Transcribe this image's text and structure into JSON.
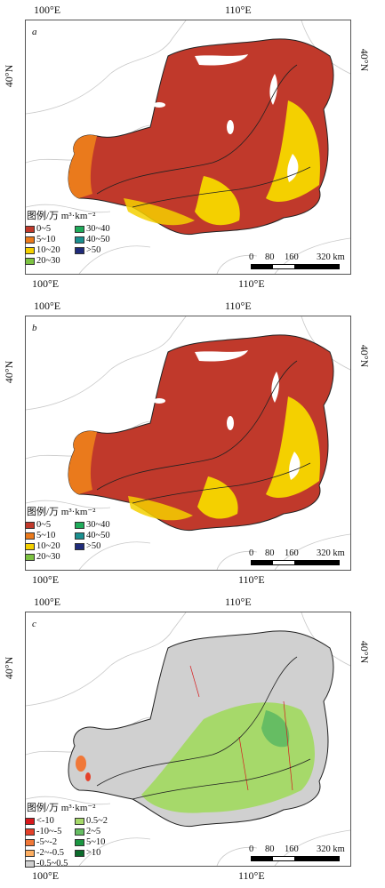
{
  "panels": [
    {
      "letter": "a",
      "lon_labels": [
        "100°E",
        "110°E"
      ],
      "lat_label": "40°N",
      "legend_title": "图例/万 m³·km⁻²",
      "legend": [
        {
          "label": "0~5",
          "color": "#c0392b"
        },
        {
          "label": "30~40",
          "color": "#1eab5a"
        },
        {
          "label": "5~10",
          "color": "#ea7a1c"
        },
        {
          "label": "40~50",
          "color": "#1a8f8f"
        },
        {
          "label": "10~20",
          "color": "#f4d000"
        },
        {
          "label": ">50",
          "color": "#1f2b7a"
        },
        {
          "label": "20~30",
          "color": "#7cc242"
        }
      ],
      "scale": [
        "0",
        "80",
        "160",
        "320 km"
      ]
    },
    {
      "letter": "b",
      "lon_labels": [
        "100°E",
        "110°E"
      ],
      "lat_label": "40°N",
      "legend_title": "图例/万 m³·km⁻²",
      "legend": [
        {
          "label": "0~5",
          "color": "#c0392b"
        },
        {
          "label": "30~40",
          "color": "#1eab5a"
        },
        {
          "label": "5~10",
          "color": "#ea7a1c"
        },
        {
          "label": "40~50",
          "color": "#1a8f8f"
        },
        {
          "label": "10~20",
          "color": "#f4d000"
        },
        {
          "label": ">50",
          "color": "#1f2b7a"
        },
        {
          "label": "20~30",
          "color": "#7cc242"
        }
      ],
      "scale": [
        "0",
        "80",
        "160",
        "320 km"
      ]
    },
    {
      "letter": "c",
      "lon_labels": [
        "100°E",
        "110°E"
      ],
      "lat_label": "40°N",
      "legend_title": "图例/万 m³·km⁻²",
      "legend": [
        {
          "label": "<-10",
          "color": "#d7191c"
        },
        {
          "label": "0.5~2",
          "color": "#a6d96a"
        },
        {
          "label": "-10~-5",
          "color": "#e4412a"
        },
        {
          "label": "2~5",
          "color": "#66bd63"
        },
        {
          "label": "-5~-2",
          "color": "#f07838"
        },
        {
          "label": "5~10",
          "color": "#1a9641"
        },
        {
          "label": "-2~-0.5",
          "color": "#fdae61"
        },
        {
          "label": ">10",
          "color": "#0b6b2b"
        },
        {
          "label": "-0.5~0.5",
          "color": "#d0d0d0"
        }
      ],
      "scale": [
        "0",
        "80",
        "160",
        "320 km"
      ]
    }
  ]
}
